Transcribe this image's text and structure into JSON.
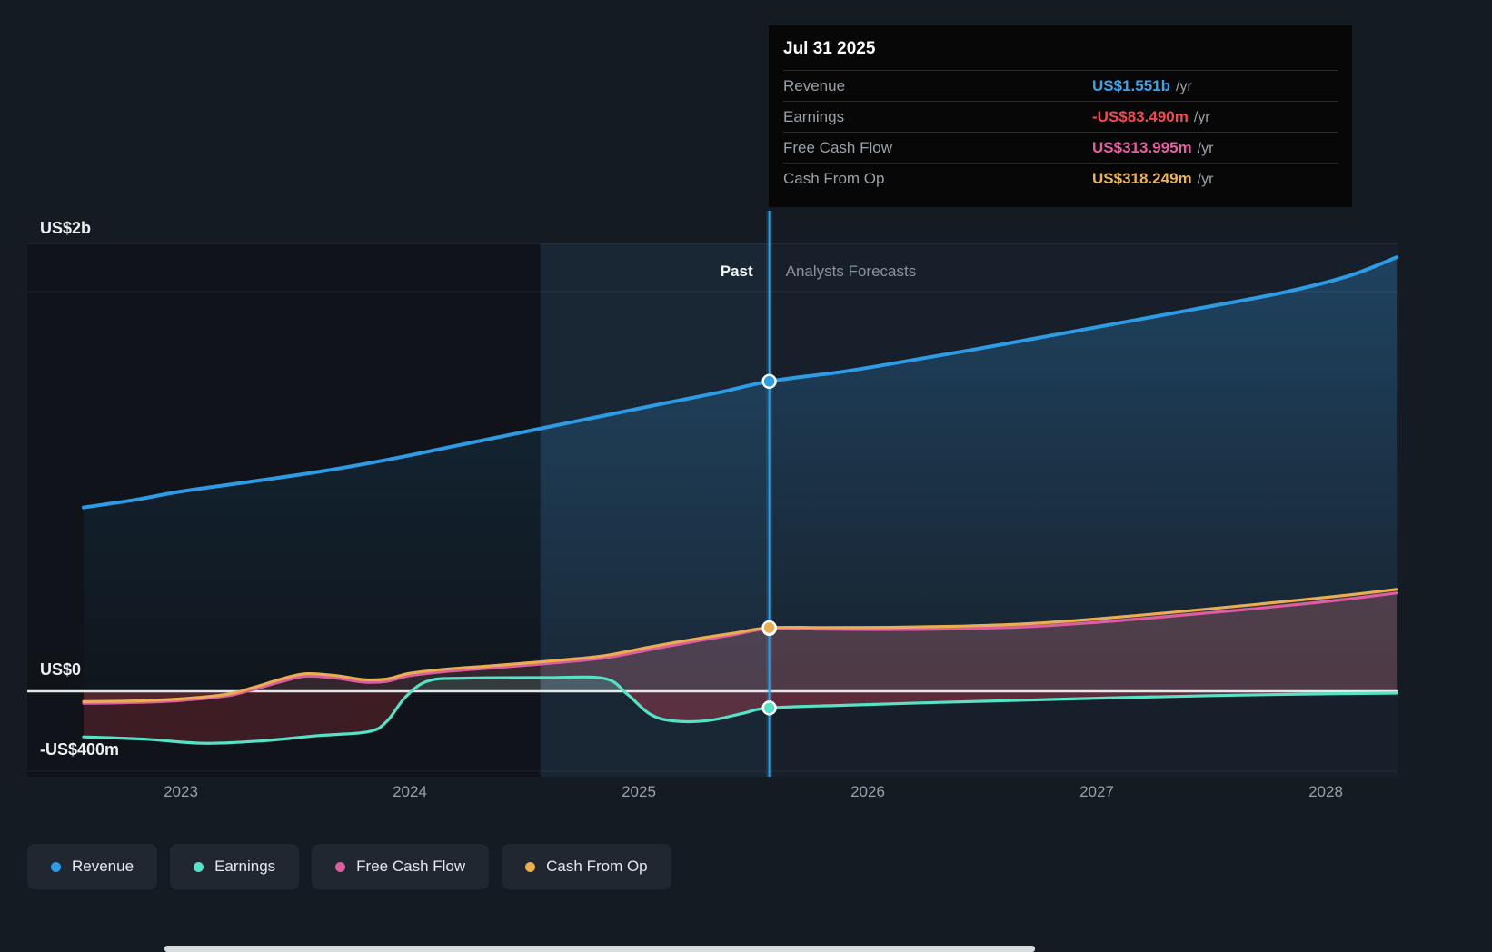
{
  "tooltip": {
    "date": "Jul 31 2025",
    "rows": [
      {
        "label": "Revenue",
        "value": "US$1.551b",
        "suffix": "/yr",
        "color": "#3fa2ea"
      },
      {
        "label": "Earnings",
        "value": "-US$83.490m",
        "suffix": "/yr",
        "color": "#ed4b53"
      },
      {
        "label": "Free Cash Flow",
        "value": "US$313.995m",
        "suffix": "/yr",
        "color": "#e2609f"
      },
      {
        "label": "Cash From Op",
        "value": "US$318.249m",
        "suffix": "/yr",
        "color": "#ebb25d"
      }
    ]
  },
  "regions": {
    "past_label": "Past",
    "forecast_label": "Analysts Forecasts"
  },
  "legend": [
    {
      "label": "Revenue",
      "color": "#2e9be5"
    },
    {
      "label": "Earnings",
      "color": "#55e2c6"
    },
    {
      "label": "Free Cash Flow",
      "color": "#de5ca2"
    },
    {
      "label": "Cash From Op",
      "color": "#e9ad52"
    }
  ],
  "chart_data": {
    "type": "line",
    "unit": "US$ millions per year",
    "title": "",
    "x_range": [
      2022.575,
      2028.31
    ],
    "x_ticks": [
      2023,
      2024,
      2025,
      2026,
      2027,
      2028
    ],
    "y_axis_labels": [
      "US$2b",
      "US$0",
      "-US$400m"
    ],
    "divider_x": 2025.57,
    "divider_date": "Jul 31 2025",
    "past_highlight_start": 2024.57,
    "series": [
      {
        "name": "Revenue",
        "color": "#2e9be5",
        "points": [
          [
            2022.575,
            920
          ],
          [
            2022.8,
            958
          ],
          [
            2023.0,
            1000
          ],
          [
            2023.3,
            1048
          ],
          [
            2023.6,
            1098
          ],
          [
            2023.9,
            1158
          ],
          [
            2024.2,
            1228
          ],
          [
            2024.5,
            1298
          ],
          [
            2024.8,
            1368
          ],
          [
            2025.1,
            1438
          ],
          [
            2025.35,
            1495
          ],
          [
            2025.57,
            1551
          ],
          [
            2025.9,
            1601
          ],
          [
            2026.2,
            1658
          ],
          [
            2026.6,
            1738
          ],
          [
            2027.0,
            1822
          ],
          [
            2027.4,
            1906
          ],
          [
            2027.8,
            1992
          ],
          [
            2028.1,
            2078
          ],
          [
            2028.31,
            2172
          ]
        ]
      },
      {
        "name": "Earnings",
        "color": "#55e2c6",
        "points": [
          [
            2022.575,
            -228
          ],
          [
            2022.85,
            -240
          ],
          [
            2023.1,
            -260
          ],
          [
            2023.35,
            -248
          ],
          [
            2023.6,
            -222
          ],
          [
            2023.82,
            -202
          ],
          [
            2023.9,
            -150
          ],
          [
            2023.98,
            -30
          ],
          [
            2024.08,
            52
          ],
          [
            2024.25,
            66
          ],
          [
            2024.6,
            68
          ],
          [
            2024.85,
            64
          ],
          [
            2024.95,
            -15
          ],
          [
            2025.05,
            -115
          ],
          [
            2025.15,
            -148
          ],
          [
            2025.3,
            -147
          ],
          [
            2025.45,
            -112
          ],
          [
            2025.57,
            -83.49
          ],
          [
            2025.9,
            -70
          ],
          [
            2026.3,
            -56
          ],
          [
            2026.7,
            -44
          ],
          [
            2027.1,
            -32
          ],
          [
            2027.5,
            -22
          ],
          [
            2027.9,
            -14
          ],
          [
            2028.31,
            -9
          ]
        ]
      },
      {
        "name": "Free Cash Flow",
        "color": "#de5ca2",
        "points": [
          [
            2022.575,
            -60
          ],
          [
            2022.8,
            -56
          ],
          [
            2023.0,
            -46
          ],
          [
            2023.2,
            -23
          ],
          [
            2023.32,
            10
          ],
          [
            2023.45,
            52
          ],
          [
            2023.55,
            76
          ],
          [
            2023.68,
            66
          ],
          [
            2023.8,
            46
          ],
          [
            2023.9,
            50
          ],
          [
            2024.0,
            78
          ],
          [
            2024.15,
            98
          ],
          [
            2024.35,
            116
          ],
          [
            2024.6,
            139
          ],
          [
            2024.85,
            167
          ],
          [
            2025.05,
            209
          ],
          [
            2025.25,
            251
          ],
          [
            2025.42,
            284
          ],
          [
            2025.57,
            313.995
          ],
          [
            2025.8,
            311
          ],
          [
            2026.1,
            309
          ],
          [
            2026.4,
            313
          ],
          [
            2026.7,
            323
          ],
          [
            2027.0,
            345
          ],
          [
            2027.3,
            373
          ],
          [
            2027.6,
            404
          ],
          [
            2027.9,
            437
          ],
          [
            2028.1,
            462
          ],
          [
            2028.31,
            492
          ]
        ]
      },
      {
        "name": "Cash From Op",
        "color": "#e9ad52",
        "points": [
          [
            2022.575,
            -52
          ],
          [
            2022.8,
            -48
          ],
          [
            2023.0,
            -38
          ],
          [
            2023.2,
            -15
          ],
          [
            2023.32,
            20
          ],
          [
            2023.45,
            65
          ],
          [
            2023.55,
            88
          ],
          [
            2023.68,
            78
          ],
          [
            2023.8,
            58
          ],
          [
            2023.9,
            62
          ],
          [
            2024.0,
            90
          ],
          [
            2024.15,
            110
          ],
          [
            2024.35,
            127
          ],
          [
            2024.6,
            150
          ],
          [
            2024.85,
            178
          ],
          [
            2025.05,
            222
          ],
          [
            2025.25,
            262
          ],
          [
            2025.42,
            292
          ],
          [
            2025.57,
            318.249
          ],
          [
            2025.8,
            319
          ],
          [
            2026.1,
            320
          ],
          [
            2026.4,
            326
          ],
          [
            2026.7,
            338
          ],
          [
            2027.0,
            362
          ],
          [
            2027.3,
            392
          ],
          [
            2027.6,
            424
          ],
          [
            2027.9,
            458
          ],
          [
            2028.1,
            482
          ],
          [
            2028.31,
            510
          ]
        ]
      }
    ],
    "markers": [
      {
        "series": "Free Cash Flow",
        "x": 2025.57,
        "value": 313.995,
        "color": "#de5ca2"
      },
      {
        "series": "Cash From Op",
        "x": 2025.57,
        "value": 318.249,
        "color": "#e9ad52"
      },
      {
        "series": "Earnings",
        "x": 2025.57,
        "value": -83.49,
        "color": "#55e2c6"
      },
      {
        "series": "Revenue",
        "x": 2025.57,
        "value": 1551,
        "color": "#2e9be5"
      }
    ]
  }
}
